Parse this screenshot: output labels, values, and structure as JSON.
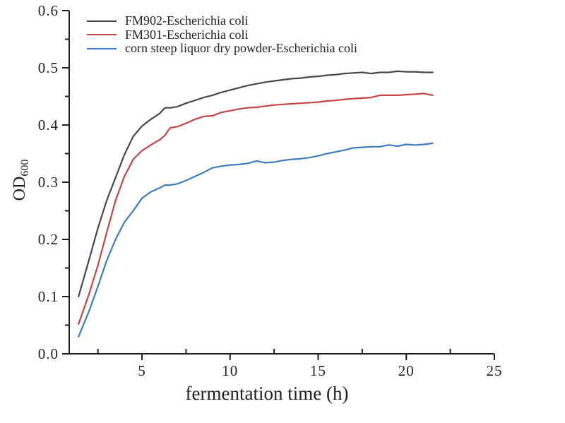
{
  "chart_data": {
    "type": "line",
    "title": "",
    "xlabel": "fermentation time (h)",
    "ylabel": "OD",
    "ylabel_subscript": "600",
    "xlim": [
      0.87,
      25
    ],
    "ylim": [
      0,
      0.6
    ],
    "x_major_ticks": [
      5,
      10,
      15,
      20,
      25
    ],
    "x_tick_labels": [
      "5",
      "10",
      "15",
      "20",
      "25"
    ],
    "x_minor_ticks": [
      2.5,
      7.5,
      12.5,
      17.5,
      22.5
    ],
    "y_major_ticks": [
      0.0,
      0.1,
      0.2,
      0.3,
      0.4,
      0.5,
      0.6
    ],
    "y_tick_labels": [
      "0.0",
      "0.1",
      "0.2",
      "0.3",
      "0.4",
      "0.5",
      "0.6"
    ],
    "y_minor_ticks": [
      0.05,
      0.15,
      0.25,
      0.35,
      0.45,
      0.55
    ],
    "grid": false,
    "legend_position": "top-left-inside",
    "axis_color": "#1f1f1f",
    "text_color": "#1f1f1f",
    "background": "#ffffff",
    "x": [
      1.4,
      2.0,
      2.5,
      3.0,
      3.5,
      4.0,
      4.5,
      5.0,
      5.5,
      6.0,
      6.3,
      6.6,
      7.0,
      7.5,
      8.0,
      8.5,
      9.0,
      9.5,
      10.0,
      10.5,
      11.0,
      11.5,
      12.0,
      12.5,
      13.0,
      13.5,
      14.0,
      14.5,
      15.0,
      15.5,
      16.0,
      16.5,
      17.0,
      17.5,
      18.0,
      18.5,
      19.0,
      19.5,
      20.0,
      20.5,
      21.0,
      21.5
    ],
    "series": [
      {
        "name": "FM902-Escherichia coli",
        "color": "#474747",
        "values": [
          0.1,
          0.165,
          0.22,
          0.268,
          0.308,
          0.348,
          0.38,
          0.398,
          0.41,
          0.42,
          0.43,
          0.43,
          0.432,
          0.438,
          0.443,
          0.448,
          0.452,
          0.457,
          0.461,
          0.465,
          0.469,
          0.472,
          0.475,
          0.477,
          0.479,
          0.481,
          0.482,
          0.484,
          0.485,
          0.487,
          0.488,
          0.49,
          0.491,
          0.492,
          0.49,
          0.492,
          0.492,
          0.494,
          0.493,
          0.493,
          0.492,
          0.492
        ]
      },
      {
        "name": "FM301-Escherichia coli",
        "color": "#c54545",
        "values": [
          0.052,
          0.105,
          0.155,
          0.212,
          0.268,
          0.31,
          0.34,
          0.355,
          0.365,
          0.374,
          0.382,
          0.395,
          0.397,
          0.403,
          0.41,
          0.415,
          0.416,
          0.422,
          0.425,
          0.428,
          0.43,
          0.431,
          0.433,
          0.435,
          0.436,
          0.437,
          0.438,
          0.439,
          0.44,
          0.442,
          0.443,
          0.445,
          0.446,
          0.447,
          0.448,
          0.452,
          0.452,
          0.452,
          0.453,
          0.454,
          0.455,
          0.452
        ]
      },
      {
        "name": "corn steep liquor dry powder-Escherichia coli",
        "color": "#3e7cc0",
        "values": [
          0.03,
          0.075,
          0.118,
          0.163,
          0.2,
          0.23,
          0.25,
          0.272,
          0.283,
          0.29,
          0.295,
          0.295,
          0.297,
          0.303,
          0.31,
          0.317,
          0.325,
          0.328,
          0.33,
          0.331,
          0.333,
          0.337,
          0.334,
          0.335,
          0.338,
          0.34,
          0.341,
          0.343,
          0.346,
          0.35,
          0.353,
          0.356,
          0.36,
          0.361,
          0.362,
          0.362,
          0.365,
          0.363,
          0.366,
          0.365,
          0.366,
          0.368
        ]
      }
    ]
  }
}
